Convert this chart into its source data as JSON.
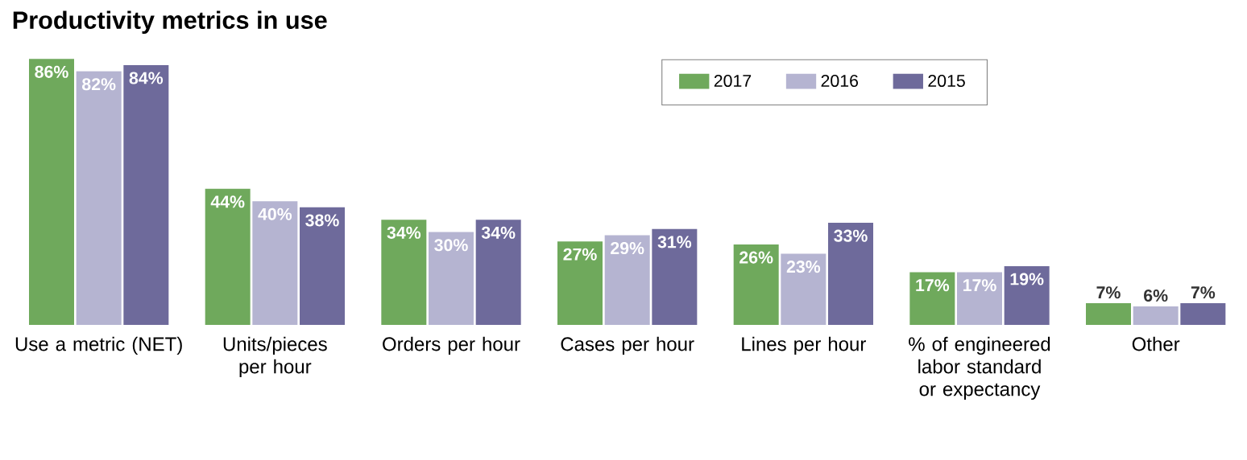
{
  "chart_data": {
    "type": "bar",
    "title": "Productivity metrics in use",
    "categories": [
      "Use a metric (NET)",
      "Units/pieces per hour",
      "Orders per hour",
      "Cases per hour",
      "Lines per hour",
      "% of engineered labor standard or expectancy",
      "Other"
    ],
    "series": [
      {
        "name": "2017",
        "color": "#6fa95c",
        "values": [
          86,
          44,
          34,
          27,
          26,
          17,
          7
        ],
        "value_labels": [
          "86%",
          "44%",
          "34%",
          "27%",
          "26%",
          "17%",
          "7%"
        ]
      },
      {
        "name": "2016",
        "color": "#b5b4d1",
        "values": [
          82,
          40,
          30,
          29,
          23,
          17,
          6
        ],
        "value_labels": [
          "82%",
          "40%",
          "30%",
          "29%",
          "23%",
          "17%",
          "6%"
        ]
      },
      {
        "name": "2015",
        "color": "#6e6a9b",
        "values": [
          84,
          38,
          34,
          31,
          33,
          19,
          7
        ],
        "value_labels": [
          "84%",
          "38%",
          "34%",
          "31%",
          "33%",
          "19%",
          "7%"
        ]
      }
    ],
    "legend": "top"
  }
}
